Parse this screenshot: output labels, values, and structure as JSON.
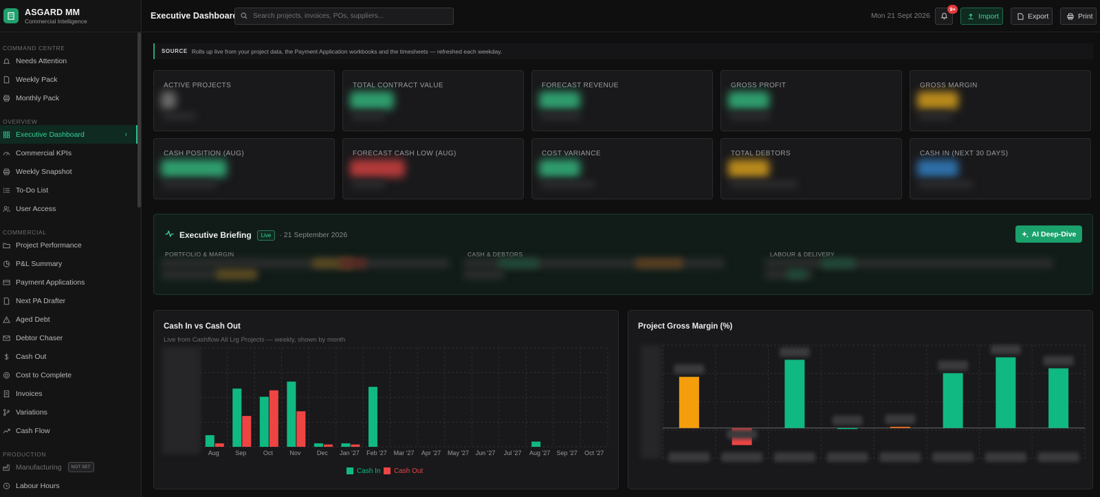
{
  "brand": {
    "title": "ASGARD MM",
    "subtitle": "Commercial Intelligence"
  },
  "sidebar": {
    "sections": [
      {
        "title": "COMMAND CENTRE",
        "items": [
          {
            "label": "Needs Attention",
            "icon": "bell-icon"
          },
          {
            "label": "Weekly Pack",
            "icon": "document-icon"
          },
          {
            "label": "Monthly Pack",
            "icon": "printer-icon"
          }
        ]
      },
      {
        "title": "OVERVIEW",
        "items": [
          {
            "label": "Executive Dashboard",
            "icon": "grid-icon",
            "active": true
          },
          {
            "label": "Commercial KPIs",
            "icon": "gauge-icon"
          },
          {
            "label": "Weekly Snapshot",
            "icon": "printer-icon"
          },
          {
            "label": "To-Do List",
            "icon": "list-icon"
          },
          {
            "label": "User Access",
            "icon": "users-icon"
          }
        ]
      },
      {
        "title": "COMMERCIAL",
        "items": [
          {
            "label": "Project Performance",
            "icon": "folder-icon"
          },
          {
            "label": "P&L Summary",
            "icon": "pie-icon"
          },
          {
            "label": "Payment Applications",
            "icon": "card-icon"
          },
          {
            "label": "Next PA Drafter",
            "icon": "document-icon"
          },
          {
            "label": "Aged Debt",
            "icon": "warning-icon"
          },
          {
            "label": "Debtor Chaser",
            "icon": "mail-icon"
          },
          {
            "label": "Cash Out",
            "icon": "dollar-icon"
          },
          {
            "label": "Cost to Complete",
            "icon": "target-icon"
          },
          {
            "label": "Invoices",
            "icon": "receipt-icon"
          },
          {
            "label": "Variations",
            "icon": "branch-icon"
          },
          {
            "label": "Cash Flow",
            "icon": "trend-icon"
          }
        ]
      },
      {
        "title": "PRODUCTION",
        "items": [
          {
            "label": "Manufacturing",
            "icon": "factory-icon",
            "badge": "NOT SET"
          },
          {
            "label": "Labour Hours",
            "icon": "clock-icon"
          }
        ]
      }
    ]
  },
  "header": {
    "title": "Executive Dashboard",
    "search_placeholder": "Search projects, invoices, POs, suppliers...",
    "date": "Mon 21 Sept 2026",
    "notifications": "9+",
    "import_label": "Import",
    "export_label": "Export",
    "print_label": "Print"
  },
  "source": {
    "label": "SOURCE",
    "text": "Rolls up live from your project data, the Payment Application workbooks and the timesheets — refreshed each weekday."
  },
  "kpis": [
    {
      "label": "ACTIVE PROJECTS",
      "color": "#6b6b6b"
    },
    {
      "label": "TOTAL CONTRACT VALUE",
      "color": "#2f9e6e"
    },
    {
      "label": "FORECAST REVENUE",
      "color": "#2f9e6e"
    },
    {
      "label": "GROSS PROFIT",
      "color": "#2f9e6e"
    },
    {
      "label": "GROSS MARGIN",
      "color": "#b98a1d"
    },
    {
      "label": "CASH POSITION (AUG)",
      "color": "#2f9e6e"
    },
    {
      "label": "FORECAST CASH LOW (AUG)",
      "color": "#b33a3a"
    },
    {
      "label": "COST VARIANCE",
      "color": "#2f9e6e"
    },
    {
      "label": "TOTAL DEBTORS",
      "color": "#b98a1d"
    },
    {
      "label": "CASH IN (NEXT 30 DAYS)",
      "color": "#2e6fa8"
    }
  ],
  "briefing": {
    "title": "Executive Briefing",
    "live": "Live",
    "date": "· 21 September 2026",
    "deep_dive": "AI Deep-Dive",
    "columns": [
      "PORTFOLIO & MARGIN",
      "CASH & DEBTORS",
      "LABOUR & DELIVERY"
    ]
  },
  "charts": {
    "cash": {
      "title": "Cash In vs Cash Out",
      "subtitle": "Live from Cashflow All Lrg Projects — weekly, shown by month",
      "legend": [
        "Cash In",
        "Cash Out"
      ],
      "colors": {
        "in": "#10b981",
        "out": "#ef4444"
      }
    },
    "margin": {
      "title": "Project Gross Margin (%)"
    }
  },
  "chart_data": [
    {
      "type": "bar",
      "categories": [
        "Aug",
        "Sep",
        "Oct",
        "Nov",
        "Dec",
        "Jan '27",
        "Feb '27",
        "Mar '27",
        "Apr '27",
        "May '27",
        "Jun '27",
        "Jul '27",
        "Aug '27",
        "Sep '27",
        "Oct '27"
      ],
      "series": [
        {
          "name": "Cash In",
          "values": [
            0.2,
            1.0,
            0.86,
            1.12,
            0.06,
            0.06,
            1.03,
            0,
            0,
            0,
            0,
            0,
            0.09,
            0,
            0
          ]
        },
        {
          "name": "Cash Out",
          "values": [
            0.06,
            0.53,
            0.97,
            0.61,
            0.04,
            0.04,
            0,
            0,
            0,
            0,
            0,
            0,
            0,
            0,
            0
          ]
        }
      ],
      "ylim": [
        0,
        1.7
      ]
    },
    {
      "type": "bar",
      "categories": [
        "",
        "",
        "",
        "",
        "",
        "",
        "",
        ""
      ],
      "values": [
        42,
        -14,
        56,
        0,
        1,
        45,
        58,
        49
      ],
      "colors": [
        "#f59e0b",
        "#ef4444",
        "#10b981",
        "#10b981",
        "#f97316",
        "#10b981",
        "#10b981",
        "#10b981"
      ],
      "ylim": [
        -25,
        68
      ]
    }
  ]
}
